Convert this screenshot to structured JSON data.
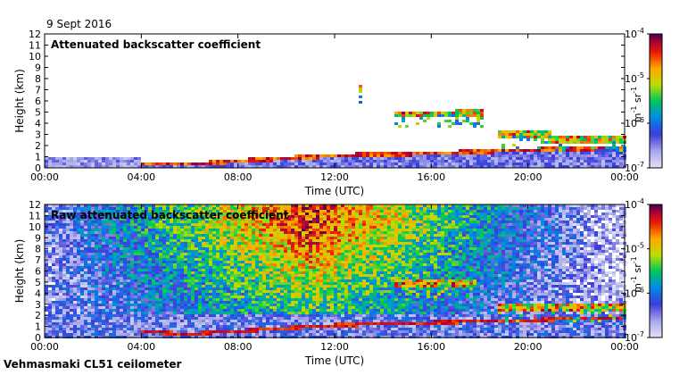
{
  "date_label": "9 Sept 2016",
  "instrument_label": "Vehmasmaki CL51 ceilometer",
  "chart_data": [
    {
      "type": "heatmap",
      "title": "Attenuated backscatter coefficient",
      "xlabel": "Time (UTC)",
      "ylabel": "Height (km)",
      "xlim": [
        0,
        24
      ],
      "ylim": [
        0,
        12
      ],
      "x_ticks": [
        "00:00",
        "04:00",
        "08:00",
        "12:00",
        "16:00",
        "20:00",
        "00:00"
      ],
      "y_ticks": [
        "0",
        "1",
        "2",
        "3",
        "4",
        "5",
        "6",
        "7",
        "8",
        "9",
        "10",
        "11",
        "12"
      ],
      "colorbar": {
        "unit_base": "m",
        "unit_exp1": "-1",
        "unit_mid": " sr",
        "unit_exp2": "-1",
        "ticks": [
          {
            "base": "10",
            "exp": "-7"
          },
          {
            "base": "10",
            "exp": "-6"
          },
          {
            "base": "10",
            "exp": "-5"
          },
          {
            "base": "10",
            "exp": "-4"
          }
        ],
        "scale": "log"
      },
      "features": {
        "boundary_layer_top_km": [
          [
            0,
            1.0
          ],
          [
            4,
            0.4
          ],
          [
            6,
            0.3
          ],
          [
            8,
            0.6
          ],
          [
            12,
            1.1
          ],
          [
            16,
            1.3
          ],
          [
            20,
            1.6
          ],
          [
            24,
            1.8
          ]
        ],
        "cloud_layers": [
          {
            "t_start": 14.5,
            "t_end": 17.0,
            "height_km": 4.8
          },
          {
            "t_start": 17.0,
            "t_end": 18.2,
            "height_km": 4.9
          },
          {
            "t_start": 18.8,
            "t_end": 21.0,
            "height_km": 3.0
          },
          {
            "t_start": 21.0,
            "t_end": 24.0,
            "height_km": 2.6
          },
          {
            "t_start": 13.0,
            "t_end": 13.2,
            "height_km": 7.0
          }
        ]
      }
    },
    {
      "type": "heatmap",
      "title": "Raw attenuated backscatter coefficient",
      "xlabel": "Time (UTC)",
      "ylabel": "Height (km)",
      "xlim": [
        0,
        24
      ],
      "ylim": [
        0,
        12
      ],
      "x_ticks": [
        "00:00",
        "04:00",
        "08:00",
        "12:00",
        "16:00",
        "20:00",
        "00:00"
      ],
      "y_ticks": [
        "0",
        "1",
        "2",
        "3",
        "4",
        "5",
        "6",
        "7",
        "8",
        "9",
        "10",
        "11",
        "12"
      ],
      "colorbar": {
        "unit_base": "m",
        "unit_exp1": "-1",
        "unit_mid": " sr",
        "unit_exp2": "-1",
        "ticks": [
          {
            "base": "10",
            "exp": "-7"
          },
          {
            "base": "10",
            "exp": "-6"
          },
          {
            "base": "10",
            "exp": "-5"
          },
          {
            "base": "10",
            "exp": "-4"
          }
        ],
        "scale": "log"
      },
      "features": {
        "noise_peak_time_utc": 11,
        "cloud_layers": [
          {
            "t_start": 14.5,
            "t_end": 17.8,
            "height_km": 4.8
          },
          {
            "t_start": 18.8,
            "t_end": 24.0,
            "height_km": 2.6
          }
        ]
      }
    }
  ],
  "colors": {
    "frame": "#000000",
    "background": "#ffffff"
  }
}
